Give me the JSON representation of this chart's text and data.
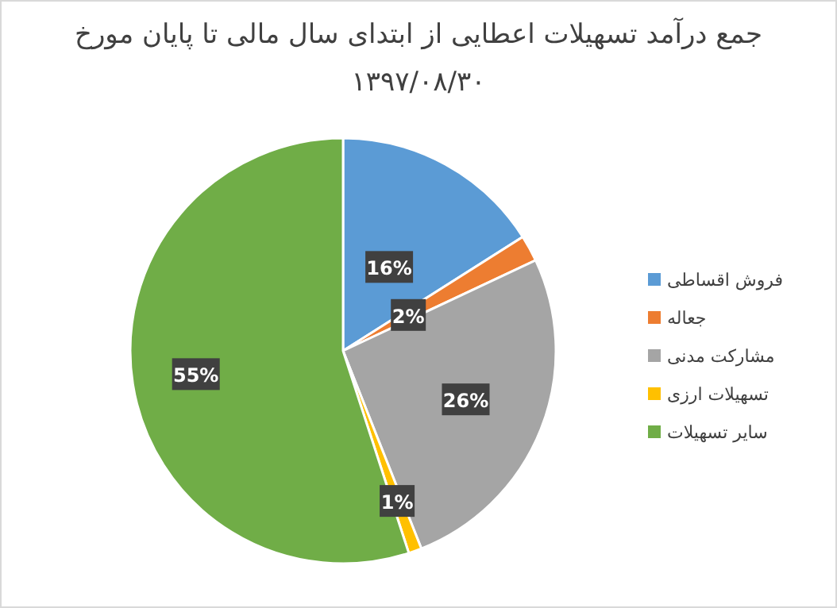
{
  "chart_data": {
    "type": "pie",
    "title": "جمع درآمد تسهیلات اعطایی از ابتدای سال مالی تا پایان مورخ",
    "subtitle": "۱۳۹۷/۰۸/۳۰",
    "categories": [
      "فروش اقساطی",
      "جعاله",
      "مشارکت مدنی",
      "تسهیلات ارزی",
      "سایر تسهیلات"
    ],
    "values": [
      16,
      2,
      26,
      1,
      55
    ],
    "value_labels": [
      "16%",
      "2%",
      "26%",
      "1%",
      "55%"
    ],
    "colors": [
      "#5b9bd5",
      "#ed7d31",
      "#a5a5a5",
      "#ffc000",
      "#70ad47"
    ],
    "legend": "right"
  }
}
